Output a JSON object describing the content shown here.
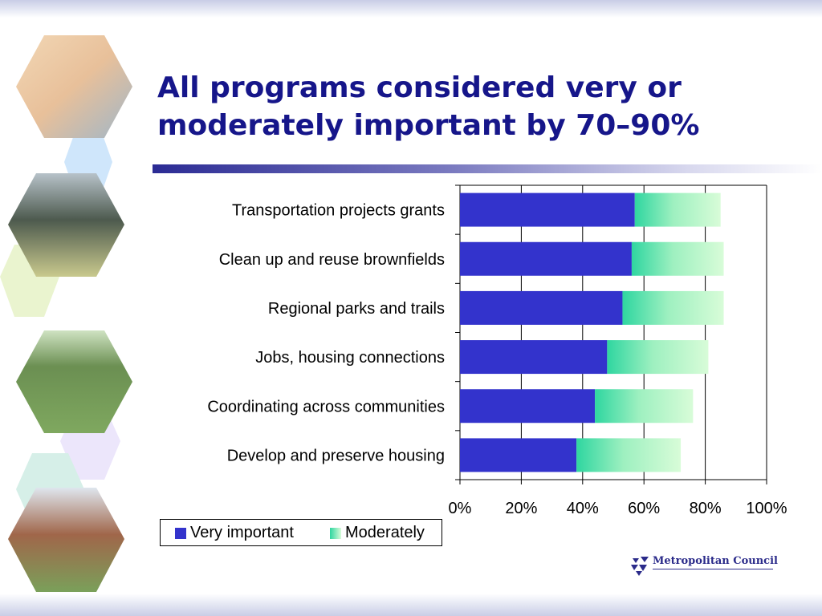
{
  "slide": {
    "title": "All programs considered very or moderately important by 70–90%",
    "logo_text": "Metropolitan Council",
    "decor_photos": [
      "child drinking water",
      "light rail train",
      "cyclist on trail",
      "townhouse housing"
    ]
  },
  "colors": {
    "title": "#16168a",
    "very_important": "#3333cc",
    "moderately_start": "#2fd6a0",
    "moderately_end": "#d8fcd8",
    "hex_blue": "#cfe6fb",
    "hex_yellow": "#eaf4cf",
    "hex_purple": "#ece6fb",
    "hex_teal": "#d6efe8"
  },
  "chart_data": {
    "type": "bar",
    "orientation": "horizontal",
    "stacked": true,
    "categories": [
      "Transportation projects grants",
      "Clean up and reuse brownfields",
      "Regional parks and trails",
      "Jobs, housing connections",
      "Coordinating across communities",
      "Develop and preserve housing"
    ],
    "series": [
      {
        "name": "Very important",
        "values": [
          57,
          56,
          53,
          48,
          44,
          38
        ]
      },
      {
        "name": "Moderately",
        "values": [
          28,
          30,
          33,
          33,
          32,
          34
        ]
      }
    ],
    "xlim": [
      0,
      100
    ],
    "xticks": [
      "0%",
      "20%",
      "40%",
      "60%",
      "80%",
      "100%"
    ],
    "grid": true,
    "legend": "bottom-left"
  }
}
